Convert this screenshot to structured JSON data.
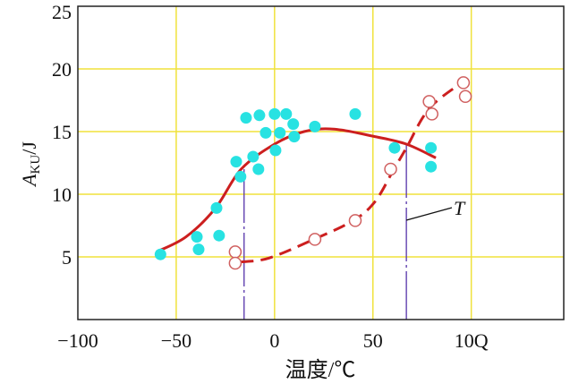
{
  "chart_data": {
    "type": "scatter",
    "xlabel": "温度/℃",
    "ylabel_main": "A",
    "ylabel_sub": "KU",
    "ylabel_unit": "/J",
    "xlim": [
      -100,
      147
    ],
    "ylim": [
      0,
      25
    ],
    "x_ticks": [
      -100,
      -50,
      0,
      50,
      100
    ],
    "x_tick_labels": [
      "−100",
      "−50",
      "0",
      "50",
      "10Q"
    ],
    "y_ticks": [
      5,
      10,
      15,
      20,
      25
    ],
    "y_tick_labels": [
      "5",
      "10",
      "15",
      "20",
      "25"
    ],
    "grid": true,
    "grid_color": "#f0e23c",
    "annotation": "T",
    "series": [
      {
        "marker": "filled-circle",
        "color": "#28e2e2",
        "points": [
          [
            -58,
            5.2
          ],
          [
            -39.5,
            6.6
          ],
          [
            -38.6,
            5.6
          ],
          [
            -29.5,
            8.9
          ],
          [
            -28.2,
            6.7
          ],
          [
            -19.5,
            12.6
          ],
          [
            -17.3,
            11.4
          ],
          [
            -10.9,
            13.0
          ],
          [
            -8.2,
            12.0
          ],
          [
            -14.5,
            16.1
          ],
          [
            -7.7,
            16.3
          ],
          [
            0,
            16.4
          ],
          [
            5.9,
            16.4
          ],
          [
            9.5,
            15.6
          ],
          [
            -4.5,
            14.9
          ],
          [
            2.7,
            14.9
          ],
          [
            10,
            14.6
          ],
          [
            0.5,
            13.5
          ],
          [
            20.5,
            15.4
          ],
          [
            41,
            16.4
          ],
          [
            61,
            13.7
          ],
          [
            79.5,
            13.7
          ],
          [
            79.5,
            12.2
          ]
        ]
      },
      {
        "marker": "open-circle",
        "color": "#d06060",
        "points": [
          [
            -20,
            5.4
          ],
          [
            -20,
            4.5
          ],
          [
            20.5,
            6.4
          ],
          [
            41,
            7.9
          ],
          [
            59,
            12.0
          ],
          [
            78.6,
            17.4
          ],
          [
            80,
            16.4
          ],
          [
            96,
            18.9
          ],
          [
            97,
            17.8
          ]
        ]
      }
    ],
    "curves": [
      {
        "style": "solid",
        "color": "#cc1f1f",
        "points": [
          [
            -60,
            5.4
          ],
          [
            -45,
            6.6
          ],
          [
            -30,
            8.9
          ],
          [
            -17,
            12.0
          ],
          [
            0,
            14.0
          ],
          [
            15,
            15.0
          ],
          [
            30,
            15.2
          ],
          [
            51,
            14.6
          ],
          [
            67,
            14.0
          ],
          [
            82,
            12.9
          ]
        ]
      },
      {
        "style": "dashed",
        "color": "#cc1f1f",
        "points": [
          [
            -17,
            4.6
          ],
          [
            -3,
            4.9
          ],
          [
            20,
            6.4
          ],
          [
            40,
            7.9
          ],
          [
            51,
            9.4
          ],
          [
            60,
            11.8
          ],
          [
            67,
            13.7
          ],
          [
            79,
            16.9
          ],
          [
            98,
            19.2
          ]
        ]
      }
    ],
    "vertical_markers": [
      {
        "x": -15.5,
        "y_top": 12.0,
        "color": "#5533aa"
      },
      {
        "x": 67,
        "y_top": 14.0,
        "color": "#5533aa"
      }
    ]
  }
}
